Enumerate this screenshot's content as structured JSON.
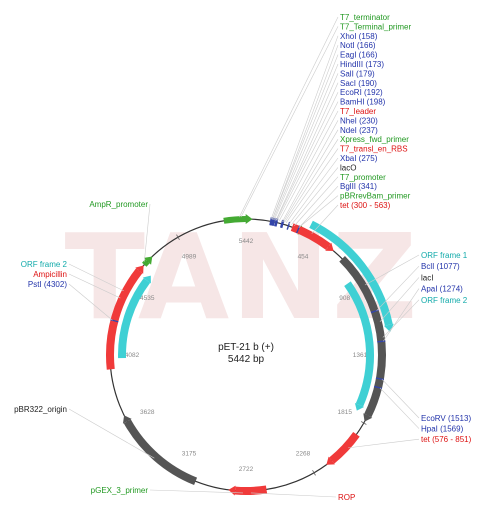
{
  "plasmid": {
    "name": "pET-21 b (+)",
    "size": "5442 bp",
    "total_bp": 5442
  },
  "watermark": "TANZ",
  "colors": {
    "backbone": "#333333",
    "feature_red": "#f03a3a",
    "feature_cyan": "#3fd0d4",
    "feature_gray": "#555555",
    "feature_green": "#44aa33",
    "feature_blue": "#3344aa",
    "label_green": "#229922",
    "label_blue": "#2233aa",
    "label_red": "#dd1111",
    "label_black": "#222222",
    "label_cyan": "#11aaaa",
    "tick_gray": "#8a8a8a"
  },
  "ticks": [
    {
      "label": "454"
    },
    {
      "label": "908"
    },
    {
      "label": "1361"
    },
    {
      "label": "1815"
    },
    {
      "label": "2268"
    },
    {
      "label": "2722"
    },
    {
      "label": "3175"
    },
    {
      "label": "3628"
    },
    {
      "label": "4082"
    },
    {
      "label": "4535"
    },
    {
      "label": "4989"
    },
    {
      "label": "5442"
    }
  ],
  "features": [
    {
      "name": "T7 terminator",
      "color": "green",
      "start": 5300,
      "end": 5440,
      "track": "outer"
    },
    {
      "name": "pBRrevBam primer",
      "color": "green",
      "start": 330,
      "end": 350,
      "track": "outer"
    },
    {
      "name": "tet small",
      "color": "red",
      "start": 300,
      "end": 563,
      "track": "outer"
    },
    {
      "name": "lacI",
      "color": "gray",
      "start": 680,
      "end": 1760,
      "track": "outer"
    },
    {
      "name": "ORF frame 1",
      "color": "cyan",
      "start": 400,
      "end": 1180,
      "track": "outer2"
    },
    {
      "name": "ORF frame 2 right",
      "color": "cyan",
      "start": 830,
      "end": 1720,
      "track": "inner"
    },
    {
      "name": "tet 576-851",
      "color": "red",
      "start": 1900,
      "end": 2130,
      "track": "outer"
    },
    {
      "name": "ROP",
      "color": "red",
      "start": 2590,
      "end": 2790,
      "track": "outer"
    },
    {
      "name": "pBR322 origin",
      "color": "gray",
      "start": 3050,
      "end": 3640,
      "track": "outer"
    },
    {
      "name": "Ampicillin",
      "color": "red",
      "start": 3990,
      "end": 4660,
      "track": "outer"
    },
    {
      "name": "ORF frame 2 left",
      "color": "cyan",
      "start": 4060,
      "end": 4640,
      "track": "inner"
    },
    {
      "name": "AmpR promoter",
      "color": "green",
      "start": 4710,
      "end": 4740,
      "track": "outer"
    }
  ],
  "labels_top": [
    {
      "text": "T7_terminator",
      "color": "green",
      "bp": 5400
    },
    {
      "text": "T7_Terminal_primer",
      "color": "green",
      "bp": 5410
    },
    {
      "text": "XhoI (158)",
      "color": "blue",
      "bp": 158
    },
    {
      "text": "NotI (166)",
      "color": "blue",
      "bp": 166
    },
    {
      "text": "EagI (166)",
      "color": "blue",
      "bp": 166
    },
    {
      "text": "HindIII (173)",
      "color": "blue",
      "bp": 173
    },
    {
      "text": "SalI (179)",
      "color": "blue",
      "bp": 179
    },
    {
      "text": "SacI (190)",
      "color": "blue",
      "bp": 190
    },
    {
      "text": "EcoRI (192)",
      "color": "blue",
      "bp": 192
    },
    {
      "text": "BamHI (198)",
      "color": "blue",
      "bp": 198
    },
    {
      "text": "T7_leader",
      "color": "red",
      "bp": 210
    },
    {
      "text": "NheI (230)",
      "color": "blue",
      "bp": 230
    },
    {
      "text": "NdeI (237)",
      "color": "blue",
      "bp": 237
    },
    {
      "text": "Xpress_fwd_primer",
      "color": "green",
      "bp": 245
    },
    {
      "text": "T7_transl_en_RBS",
      "color": "red",
      "bp": 255
    },
    {
      "text": "XbaI (275)",
      "color": "blue",
      "bp": 275
    },
    {
      "text": "lacO",
      "color": "black",
      "bp": 290
    },
    {
      "text": "T7_promoter",
      "color": "green",
      "bp": 310
    },
    {
      "text": "BglII (341)",
      "color": "blue",
      "bp": 341
    },
    {
      "text": "pBRrevBam_primer",
      "color": "green",
      "bp": 340
    },
    {
      "text": "tet (300 - 563)",
      "color": "red",
      "bp": 430
    }
  ],
  "labels_right": [
    {
      "text": "ORF frame 1",
      "color": "cyan",
      "bp": 900
    },
    {
      "text": "BclI (1077)",
      "color": "blue",
      "bp": 1077
    },
    {
      "text": "lacI",
      "color": "black",
      "bp": 1150
    },
    {
      "text": "ApaI (1274)",
      "color": "blue",
      "bp": 1274
    },
    {
      "text": "ORF frame 2",
      "color": "cyan",
      "bp": 1250
    }
  ],
  "labels_lower_right": [
    {
      "text": "EcoRV (1513)",
      "color": "blue",
      "bp": 1513
    },
    {
      "text": "HpaI (1569)",
      "color": "blue",
      "bp": 1569
    },
    {
      "text": "tet (576 - 851)",
      "color": "red",
      "bp": 2000
    }
  ],
  "labels_left": [
    {
      "text": "AmpR_promoter",
      "color": "green",
      "bp": 4725
    },
    {
      "text": "ORF frame 2",
      "color": "cyan",
      "bp": 4500
    },
    {
      "text": "Ampicillin",
      "color": "red",
      "bp": 4450
    },
    {
      "text": "PstI (4302)",
      "color": "blue",
      "bp": 4302
    },
    {
      "text": "pBR322_origin",
      "color": "black",
      "bp": 3350
    },
    {
      "text": "pGEX_3_primer",
      "color": "green",
      "bp": 2740
    },
    {
      "text": "ROP",
      "color": "red",
      "bp": 2690
    }
  ]
}
